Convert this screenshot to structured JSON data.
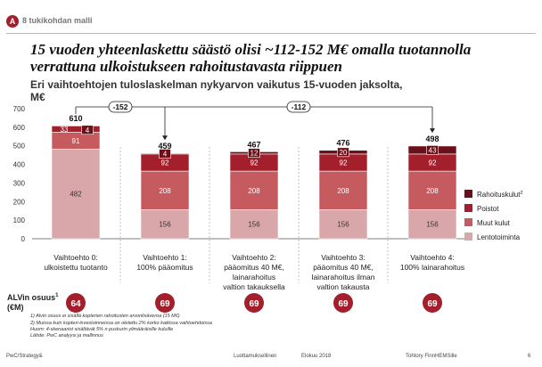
{
  "header": {
    "badge": "A",
    "section": "8 tukikohdan malli",
    "title": "15 vuoden yhteenlaskettu säästö olisi ~112-152 M€ omalla tuotannolla verrattuna ulkoistukseen rahoitustavasta riippuen",
    "subtitle": "Eri vaihtoehtojen tuloslaskelman nykyarvon vaikutus 15-vuoden jaksolta, M€"
  },
  "chart_data": {
    "type": "bar",
    "stacked": true,
    "ylim": [
      0,
      700
    ],
    "yticks": [
      0,
      100,
      200,
      300,
      400,
      500,
      600,
      700
    ],
    "categories": [
      [
        "Vaihtoehto 0:",
        "ulkoistettu tuotanto"
      ],
      [
        "Vaihtoehto 1:",
        "100% pääomitus"
      ],
      [
        "Vaihtoehto 2:",
        "pääomitus 40 M€,",
        "lainarahoitus",
        "valtion takauksella"
      ],
      [
        "Vaihtoehto 3:",
        "pääomitus 40 M€,",
        "lainarahoitus ilman",
        "valtion takausta"
      ],
      [
        "Vaihtoehto 4:",
        "100% lainarahoitus"
      ]
    ],
    "series": [
      {
        "name": "Lentotoiminta",
        "color": "#d9a7a9",
        "values": [
          482,
          156,
          156,
          156,
          156
        ]
      },
      {
        "name": "Muut kulut",
        "color": "#c55a5f",
        "values": [
          91,
          208,
          208,
          208,
          208
        ]
      },
      {
        "name": "Poistot",
        "color": "#a31f2b",
        "values": [
          33,
          92,
          92,
          92,
          92
        ]
      },
      {
        "name": "Rahoituskulut",
        "color": "#6b0f18",
        "values": [
          4,
          4,
          12,
          20,
          43
        ]
      }
    ],
    "totals": [
      610,
      459,
      467,
      476,
      498
    ],
    "legend": [
      {
        "name": "Rahoituskulut",
        "sup": "2",
        "color": "#6b0f18"
      },
      {
        "name": "Poistot",
        "sup": "",
        "color": "#a31f2b"
      },
      {
        "name": "Muut kulut",
        "sup": "",
        "color": "#c55a5f"
      },
      {
        "name": "Lentotoiminta",
        "sup": "",
        "color": "#d9a7a9"
      }
    ],
    "legend_position": "right",
    "differences": [
      {
        "label": "-152",
        "from": 0,
        "to": 1
      },
      {
        "label": "-112",
        "from": 0,
        "to": 4
      }
    ]
  },
  "vat": {
    "label_line1": "ALVin osuus",
    "label_sup": "1",
    "label_line2": "(€M)",
    "values": [
      "64",
      "69",
      "69",
      "69",
      "69"
    ],
    "circle_color": "#a31f2b"
  },
  "footnotes": [
    "1)     Alvin osuus ei sisällä kopterien rahoitusten arvonlisäveroa (15 M€)",
    "2)     Muissa kuin kopteri-investoinneissa on oletettu 2% korko kaikissa vaihtoehdoissa",
    "Huom: 4-skenaariot sisältävät 5% n puskurin ylimääräisille kuluille",
    "Lähde: PwC analyysi ja mallinnus"
  ],
  "bottom": {
    "left": "PwC/Strategy&",
    "center1": "Luottamuksellinen",
    "center2": "Elokuu 2018",
    "right": "Tohtory FinnHEMSille",
    "page": "6"
  }
}
